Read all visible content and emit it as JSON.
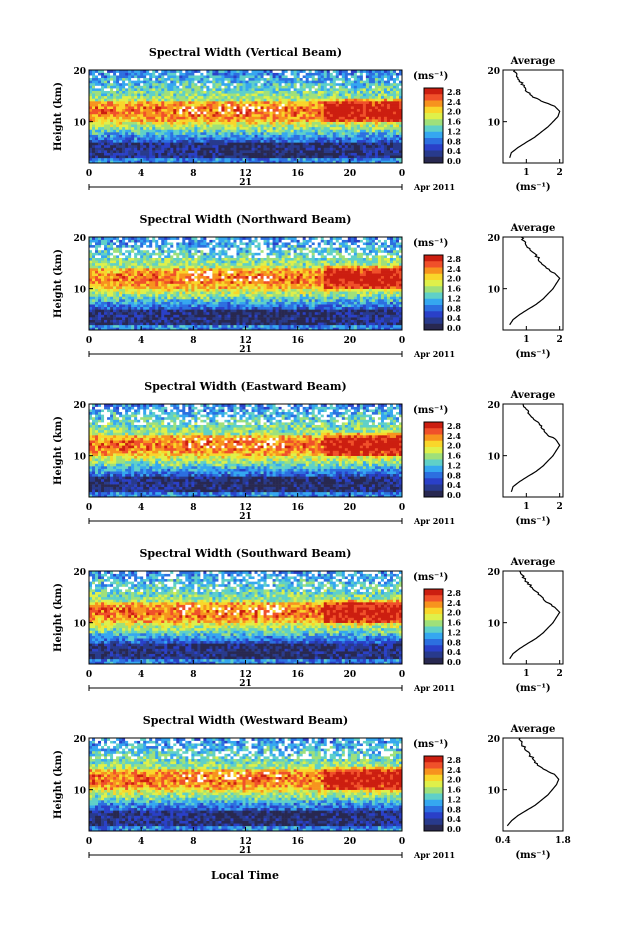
{
  "figure": {
    "xlabel": "Local Time",
    "date_label": "Apr 2011",
    "day_label": "21",
    "ylabel": "Height (km)",
    "unit_label": "(ms⁻¹)",
    "avg_title": "Average",
    "avg_xlabel": "(ms⁻¹)"
  },
  "colorbar": {
    "tick_labels": [
      "2.8",
      "2.4",
      "2.0",
      "1.6",
      "1.2",
      "0.8",
      "0.4",
      "0.0"
    ],
    "colors": [
      "#cc1e10",
      "#f0502a",
      "#f7931e",
      "#f9d62a",
      "#dff04a",
      "#9fe07a",
      "#5fd0c8",
      "#35a7f0",
      "#2c6fe0",
      "#2a40c8",
      "#283a8c",
      "#282850"
    ]
  },
  "chart_data": [
    {
      "type": "heatmap",
      "title": "Spectral Width (Vertical Beam)",
      "xlabel": "Local Time",
      "ylabel": "Height (km)",
      "x_ticks": [
        "0",
        "4",
        "8",
        "12",
        "16",
        "20",
        "0"
      ],
      "y_ticks": [
        "20",
        "10"
      ],
      "xlim": [
        0,
        24
      ],
      "ylim": [
        2,
        20
      ],
      "colorbar_range": [
        0.0,
        2.8
      ],
      "colorbar_unit": "(ms⁻¹)",
      "average_profile": {
        "title": "Average",
        "x_ticks": [
          "1",
          "2"
        ],
        "xlim": [
          0.3,
          2.1
        ],
        "y_ticks": [
          "20",
          "10"
        ],
        "ylim": [
          2,
          20
        ],
        "height_km": [
          3,
          4,
          5,
          6,
          7,
          8,
          9,
          10,
          11,
          12,
          13,
          14,
          15,
          16,
          17,
          18,
          19,
          20
        ],
        "width_ms": [
          0.5,
          0.55,
          0.75,
          1.0,
          1.25,
          1.45,
          1.65,
          1.8,
          1.95,
          2.0,
          1.85,
          1.45,
          1.15,
          1.0,
          0.9,
          0.8,
          0.7,
          0.65
        ]
      }
    },
    {
      "type": "heatmap",
      "title": "Spectral Width (Northward Beam)",
      "xlabel": "Local Time",
      "ylabel": "Height (km)",
      "x_ticks": [
        "0",
        "4",
        "8",
        "12",
        "16",
        "20",
        "0"
      ],
      "y_ticks": [
        "20",
        "10"
      ],
      "xlim": [
        0,
        24
      ],
      "ylim": [
        2,
        20
      ],
      "colorbar_range": [
        0.0,
        2.8
      ],
      "colorbar_unit": "(ms⁻¹)",
      "average_profile": {
        "title": "Average",
        "x_ticks": [
          "1",
          "2"
        ],
        "xlim": [
          0.3,
          2.1
        ],
        "y_ticks": [
          "20",
          "10"
        ],
        "ylim": [
          2,
          20
        ],
        "height_km": [
          3,
          4,
          5,
          6,
          7,
          8,
          9,
          10,
          11,
          12,
          13,
          14,
          15,
          16,
          17,
          18,
          19,
          20
        ],
        "width_ms": [
          0.5,
          0.6,
          0.8,
          1.05,
          1.3,
          1.5,
          1.65,
          1.8,
          1.9,
          2.0,
          1.85,
          1.6,
          1.45,
          1.35,
          1.2,
          1.05,
          0.95,
          0.85
        ]
      }
    },
    {
      "type": "heatmap",
      "title": "Spectral Width (Eastward Beam)",
      "xlabel": "Local Time",
      "ylabel": "Height (km)",
      "x_ticks": [
        "0",
        "4",
        "8",
        "12",
        "16",
        "20",
        "0"
      ],
      "y_ticks": [
        "20",
        "10"
      ],
      "xlim": [
        0,
        24
      ],
      "ylim": [
        2,
        20
      ],
      "colorbar_range": [
        0.0,
        2.8
      ],
      "colorbar_unit": "(ms⁻¹)",
      "average_profile": {
        "title": "Average",
        "x_ticks": [
          "1",
          "2"
        ],
        "xlim": [
          0.3,
          2.1
        ],
        "y_ticks": [
          "20",
          "10"
        ],
        "ylim": [
          2,
          20
        ],
        "height_km": [
          3,
          4,
          5,
          6,
          7,
          8,
          9,
          10,
          11,
          12,
          13,
          14,
          15,
          16,
          17,
          18,
          19,
          20
        ],
        "width_ms": [
          0.55,
          0.6,
          0.8,
          1.05,
          1.3,
          1.5,
          1.65,
          1.8,
          1.9,
          2.0,
          1.9,
          1.65,
          1.5,
          1.4,
          1.25,
          1.1,
          1.0,
          0.9
        ]
      }
    },
    {
      "type": "heatmap",
      "title": "Spectral Width (Southward Beam)",
      "xlabel": "Local Time",
      "ylabel": "Height (km)",
      "x_ticks": [
        "0",
        "4",
        "8",
        "12",
        "16",
        "20",
        "0"
      ],
      "y_ticks": [
        "20",
        "10"
      ],
      "xlim": [
        0,
        24
      ],
      "ylim": [
        2,
        20
      ],
      "colorbar_range": [
        0.0,
        2.8
      ],
      "colorbar_unit": "(ms⁻¹)",
      "average_profile": {
        "title": "Average",
        "x_ticks": [
          "1",
          "2"
        ],
        "xlim": [
          0.3,
          2.1
        ],
        "y_ticks": [
          "20",
          "10"
        ],
        "ylim": [
          2,
          20
        ],
        "height_km": [
          3,
          4,
          5,
          6,
          7,
          8,
          9,
          10,
          11,
          12,
          13,
          14,
          15,
          16,
          17,
          18,
          19,
          20
        ],
        "width_ms": [
          0.5,
          0.6,
          0.8,
          1.05,
          1.3,
          1.5,
          1.65,
          1.8,
          1.9,
          2.0,
          1.85,
          1.6,
          1.45,
          1.3,
          1.15,
          1.0,
          0.9,
          0.8
        ]
      }
    },
    {
      "type": "heatmap",
      "title": "Spectral Width (Westward Beam)",
      "xlabel": "Local Time",
      "ylabel": "Height (km)",
      "x_ticks": [
        "0",
        "4",
        "8",
        "12",
        "16",
        "20",
        "0"
      ],
      "y_ticks": [
        "20",
        "10"
      ],
      "xlim": [
        0,
        24
      ],
      "ylim": [
        2,
        20
      ],
      "colorbar_range": [
        0.0,
        2.8
      ],
      "colorbar_unit": "(ms⁻¹)",
      "average_profile": {
        "title": "Average",
        "x_ticks": [
          "0.4",
          "1.8"
        ],
        "xlim": [
          0.4,
          1.8
        ],
        "y_ticks": [
          "20",
          "10"
        ],
        "ylim": [
          2,
          20
        ],
        "height_km": [
          3,
          4,
          5,
          6,
          7,
          8,
          9,
          10,
          11,
          12,
          13,
          14,
          15,
          16,
          17,
          18,
          19,
          20
        ],
        "width_ms": [
          0.5,
          0.6,
          0.75,
          0.95,
          1.15,
          1.3,
          1.45,
          1.55,
          1.65,
          1.7,
          1.6,
          1.35,
          1.2,
          1.1,
          1.0,
          0.9,
          0.85,
          0.8
        ]
      }
    }
  ]
}
